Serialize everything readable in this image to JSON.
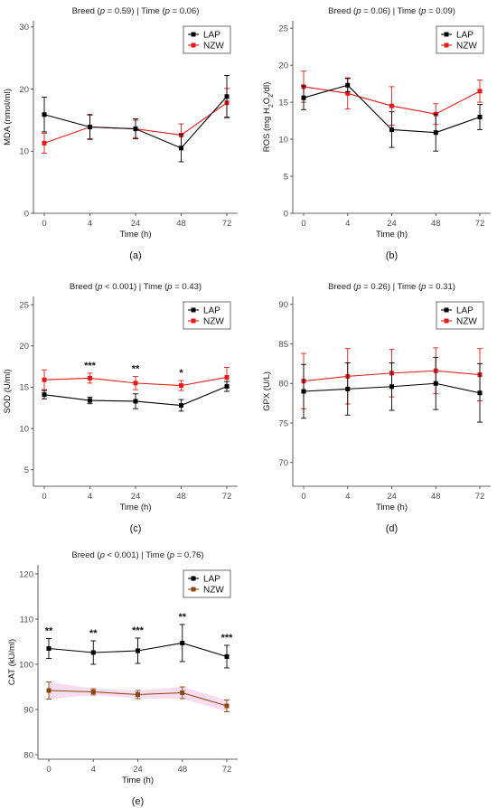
{
  "chart_data": [
    {
      "type": "line",
      "panel_label": "(a)",
      "title_parts": [
        "Breed (",
        "p",
        " = 0.59) | Time (",
        "p",
        " = 0.06)"
      ],
      "xlabel": "Time (h)",
      "ylabel": "MDA  (nmol/ml)",
      "categories": [
        "0",
        "4",
        "24",
        "48",
        "72"
      ],
      "yticks": [
        "0",
        "10",
        "20",
        "30"
      ],
      "ylim": [
        0,
        31
      ],
      "legend_position": "top-right",
      "series": [
        {
          "name": "LAP",
          "color": "#000000",
          "values": [
            15.9,
            13.9,
            13.6,
            10.5,
            18.8
          ],
          "err": [
            2.8,
            2.0,
            1.6,
            2.2,
            3.4
          ]
        },
        {
          "name": "NZW",
          "color": "#e41a1c",
          "values": [
            11.3,
            13.9,
            13.6,
            12.6,
            17.8
          ],
          "err": [
            1.6,
            1.9,
            1.4,
            1.8,
            2.3
          ]
        }
      ]
    },
    {
      "type": "line",
      "panel_label": "(b)",
      "title_parts": [
        "Breed (",
        "p",
        " = 0.06) | Time (",
        "p",
        " = 0.09)"
      ],
      "xlabel": "Time (h)",
      "ylabel_parts": [
        "ROS (mg H",
        "2",
        "O",
        "2",
        "/dl)"
      ],
      "categories": [
        "0",
        "4",
        "24",
        "48",
        "72"
      ],
      "yticks": [
        "0",
        "5",
        "10",
        "15",
        "20",
        "25"
      ],
      "ylim": [
        0,
        26
      ],
      "legend_position": "top-right",
      "series": [
        {
          "name": "LAP",
          "color": "#000000",
          "values": [
            15.6,
            17.3,
            11.3,
            10.9,
            13.0
          ],
          "err": [
            1.6,
            0.9,
            2.4,
            2.5,
            1.7
          ]
        },
        {
          "name": "NZW",
          "color": "#e41a1c",
          "values": [
            17.1,
            16.2,
            14.5,
            13.4,
            16.5
          ],
          "err": [
            2.1,
            2.1,
            2.6,
            1.4,
            1.5
          ]
        }
      ]
    },
    {
      "type": "line",
      "panel_label": "(c)",
      "title_parts": [
        "Breed (",
        "p",
        " < 0.001) | Time (",
        "p",
        " = 0.43)"
      ],
      "xlabel": "Time (h)",
      "ylabel": "SOD (U/ml)",
      "categories": [
        "0",
        "4",
        "24",
        "48",
        "72"
      ],
      "yticks": [
        "5",
        "10",
        "15",
        "20",
        "25"
      ],
      "ylim": [
        3,
        26
      ],
      "legend_position": "top-right",
      "annotations": [
        "",
        "***",
        "**",
        "*",
        ""
      ],
      "series": [
        {
          "name": "LAP",
          "color": "#000000",
          "values": [
            14.1,
            13.4,
            13.3,
            12.8,
            15.1
          ],
          "err": [
            0.5,
            0.4,
            0.9,
            0.7,
            0.6
          ]
        },
        {
          "name": "NZW",
          "color": "#e41a1c",
          "values": [
            15.9,
            16.1,
            15.5,
            15.2,
            16.2
          ],
          "err": [
            1.2,
            0.6,
            0.8,
            0.6,
            1.2
          ]
        }
      ]
    },
    {
      "type": "line",
      "panel_label": "(d)",
      "title_parts": [
        "Breed (",
        "p",
        " = 0.26) | Time (",
        "p",
        " = 0.31)"
      ],
      "xlabel": "Time (h)",
      "ylabel": "GPX  (U/L)",
      "categories": [
        "0",
        "4",
        "24",
        "48",
        "72"
      ],
      "yticks": [
        "70",
        "75",
        "80",
        "85",
        "90"
      ],
      "ylim": [
        67,
        91
      ],
      "legend_position": "top-right",
      "series": [
        {
          "name": "LAP",
          "color": "#000000",
          "values": [
            79.0,
            79.3,
            79.6,
            80.0,
            78.8
          ],
          "err": [
            3.4,
            3.3,
            3.0,
            3.3,
            3.7
          ]
        },
        {
          "name": "NZW",
          "color": "#e41a1c",
          "values": [
            80.3,
            80.9,
            81.3,
            81.6,
            81.1
          ],
          "err": [
            3.5,
            3.5,
            3.0,
            2.9,
            3.3
          ]
        }
      ]
    },
    {
      "type": "line",
      "panel_label": "(e)",
      "title_parts": [
        "Breed (",
        "p",
        " < 0.001) | Time (",
        "p",
        " = 0.76)"
      ],
      "xlabel": "Time (h)",
      "ylabel": "CAT (kU/ml)",
      "categories": [
        "0",
        "4",
        "24",
        "48",
        "72"
      ],
      "yticks": [
        "80",
        "90",
        "100",
        "110",
        "120"
      ],
      "ylim": [
        79,
        122
      ],
      "legend_position": "top-right",
      "annotations": [
        "**",
        "**",
        "***",
        "**",
        "***"
      ],
      "series": [
        {
          "name": "LAP",
          "color": "#000000",
          "values": [
            103.5,
            102.6,
            103.0,
            104.7,
            101.7
          ],
          "err": [
            2.2,
            2.6,
            2.8,
            4.1,
            2.5
          ]
        },
        {
          "name": "NZW",
          "color": "#8b4513",
          "band": "#f7d9f0",
          "values": [
            94.2,
            93.9,
            93.3,
            93.7,
            90.8
          ],
          "err": [
            1.9,
            0.7,
            0.9,
            1.3,
            1.3
          ]
        }
      ]
    }
  ]
}
